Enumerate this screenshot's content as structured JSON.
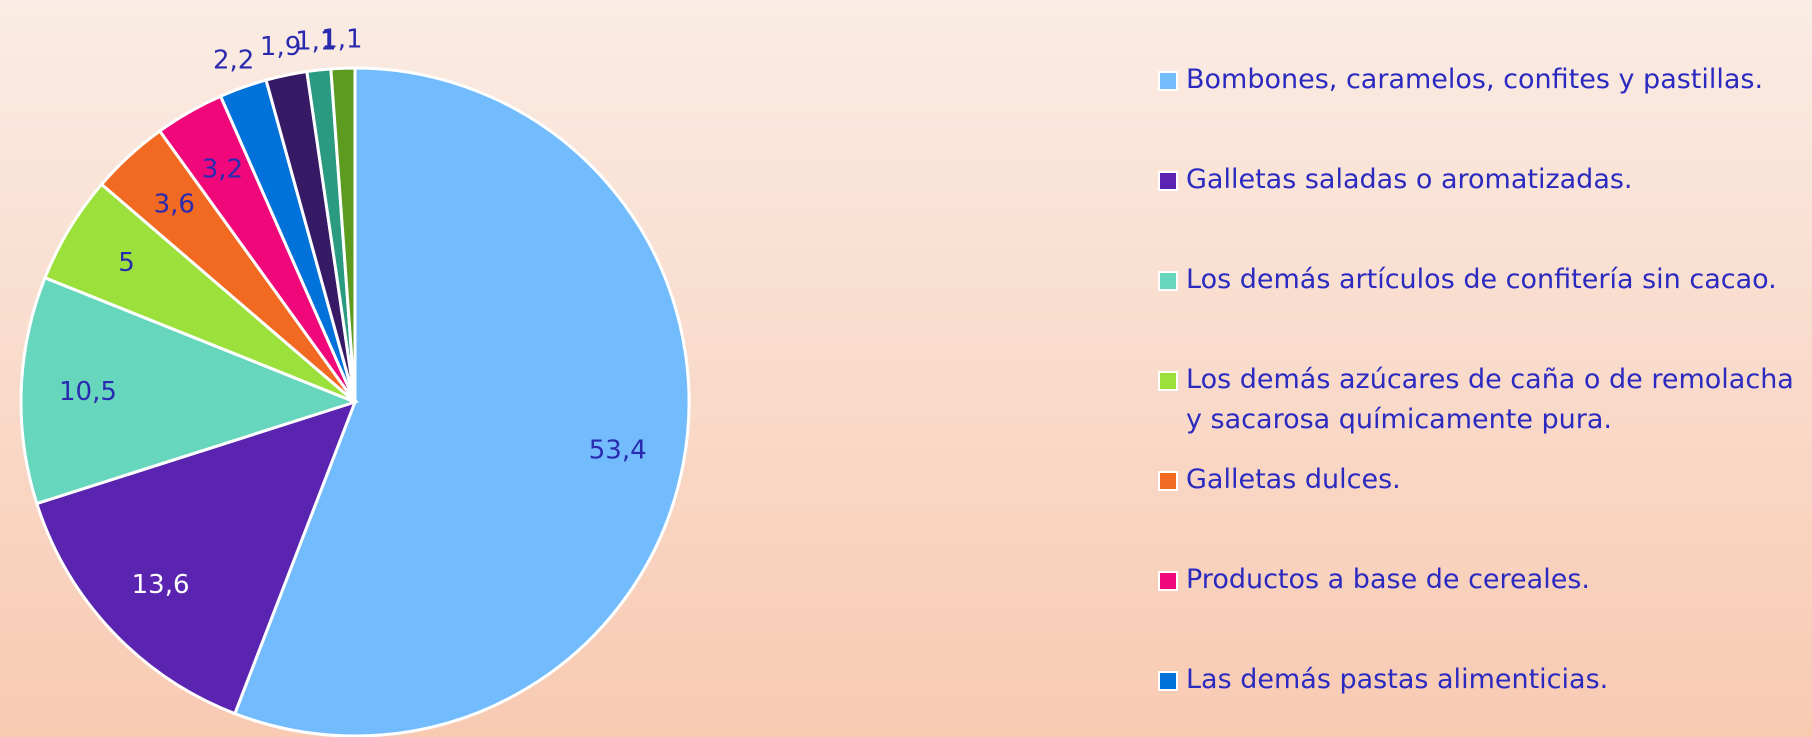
{
  "chart_data": {
    "type": "pie",
    "categories": [
      "Bombones, caramelos, confites y pastillas.",
      "Galletas saladas o aromatizadas.",
      "Los demás artículos de confitería sin cacao.",
      "Los demás azúcares de caña o de remolacha y sacarosa químicamente pura.",
      "Galletas dulces.",
      "Productos a base de cereales.",
      "Las demás pastas alimenticias.",
      null,
      null,
      null
    ],
    "values": [
      53.4,
      13.6,
      10.5,
      5,
      3.6,
      3.2,
      2.2,
      1.9,
      1.1,
      1.1
    ],
    "value_labels": [
      "53,4",
      "13,6",
      "10,5",
      "5",
      "3,6",
      "3,2",
      "2,2",
      "1,9",
      "1,1",
      "1,1"
    ],
    "colors": [
      "#72bcfd",
      "#5a24b0",
      "#66d6bd",
      "#9ce03c",
      "#f26a22",
      "#f0077a",
      "#0072d9",
      "#371a66",
      "#2a9a80",
      "#5c9a20"
    ],
    "legend": "right"
  }
}
